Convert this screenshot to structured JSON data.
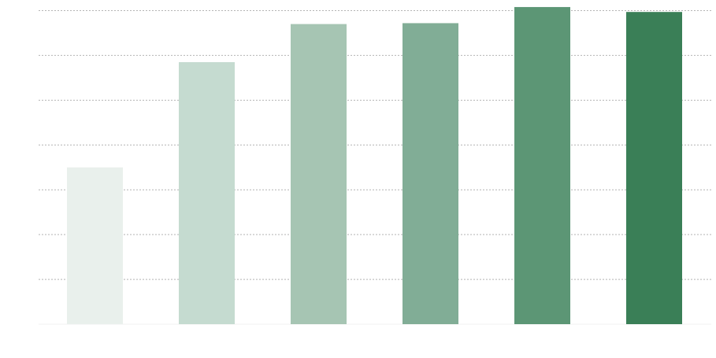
{
  "chart_data": {
    "type": "bar",
    "title": "",
    "xlabel": "",
    "ylabel": "",
    "categories": [
      "",
      "",
      "",
      "",
      "",
      ""
    ],
    "values": [
      3.5,
      5.85,
      6.7,
      6.72,
      7.08,
      6.97
    ],
    "ylim": [
      0,
      7
    ],
    "yticks": [
      0,
      1,
      2,
      3,
      4,
      5,
      6,
      7
    ],
    "grid": true,
    "legend": "none",
    "colors": [
      "#e9f0ec",
      "#c5dbd0",
      "#a6c5b3",
      "#81ad96",
      "#5c9675",
      "#3a7f57"
    ]
  }
}
